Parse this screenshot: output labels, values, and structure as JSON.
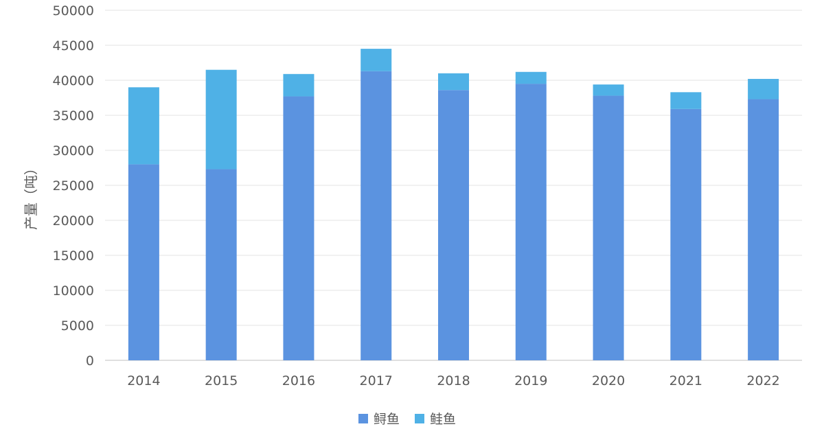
{
  "chart_data": {
    "type": "bar",
    "stacked": true,
    "categories": [
      "2014",
      "2015",
      "2016",
      "2017",
      "2018",
      "2019",
      "2020",
      "2021",
      "2022"
    ],
    "series": [
      {
        "name": "鲟鱼",
        "color": "#5b93e0",
        "values": [
          28000,
          27300,
          37700,
          41300,
          38600,
          39500,
          37800,
          35900,
          37300
        ]
      },
      {
        "name": "鲑鱼",
        "color": "#4fb1e6",
        "values": [
          11000,
          14200,
          3200,
          3200,
          2400,
          1700,
          1600,
          2400,
          2900
        ]
      }
    ],
    "ylabel": "产量（吨）",
    "ylim": [
      0,
      50000
    ],
    "yticks": [
      "0",
      "5000",
      "10000",
      "15000",
      "20000",
      "25000",
      "30000",
      "35000",
      "40000",
      "45000",
      "50000"
    ],
    "grid": true,
    "legend": "bottom"
  }
}
